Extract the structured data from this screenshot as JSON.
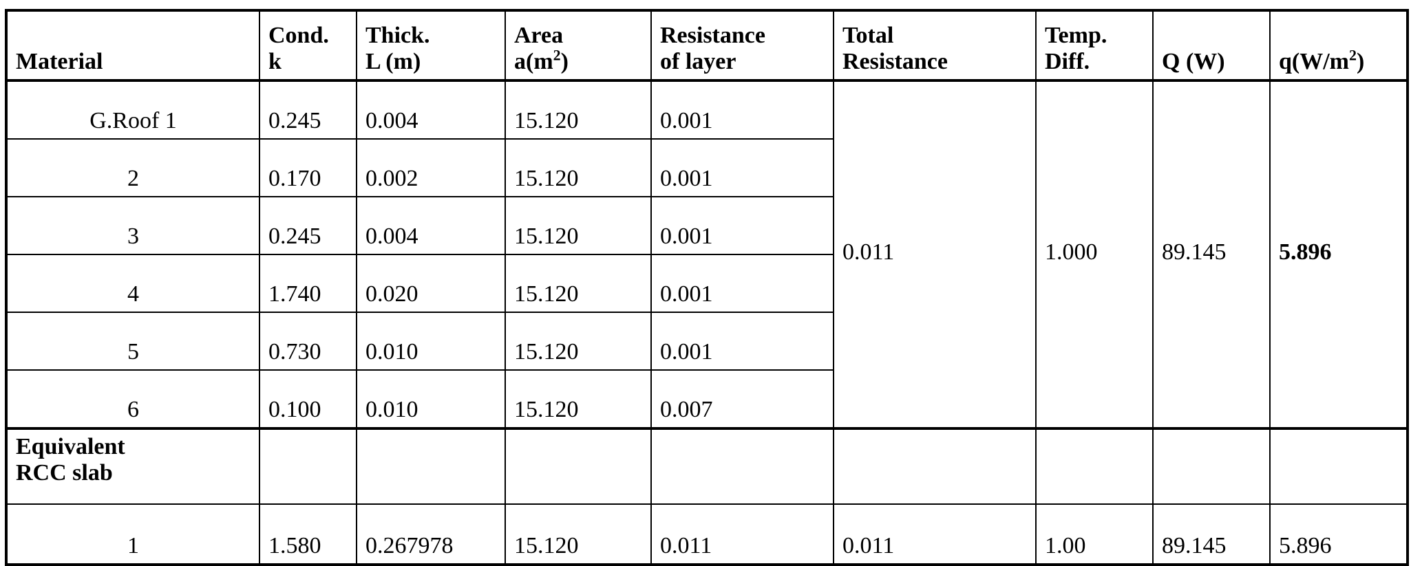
{
  "headers": {
    "material": "Material",
    "cond_1": "Cond.",
    "cond_2": "k",
    "thick_1": "Thick.",
    "thick_2": "L (m)",
    "area_1": "Area",
    "area_2": "a(m",
    "area_sup": "2",
    "area_3": ")",
    "res_1": "Resistance",
    "res_2": "of layer",
    "total_1": "Total",
    "total_2": "Resistance",
    "temp_1": "Temp.",
    "temp_2": "Diff.",
    "Q": "Q (W)",
    "q_1": "q(W/m",
    "q_sup": "2",
    "q_3": ")"
  },
  "layers": [
    {
      "material": "G.Roof 1",
      "k": "0.245",
      "L": "0.004",
      "a": "15.120",
      "r": "0.001"
    },
    {
      "material": "2",
      "k": "0.170",
      "L": "0.002",
      "a": "15.120",
      "r": "0.001"
    },
    {
      "material": "3",
      "k": "0.245",
      "L": "0.004",
      "a": "15.120",
      "r": "0.001"
    },
    {
      "material": "4",
      "k": "1.740",
      "L": "0.020",
      "a": "15.120",
      "r": "0.001"
    },
    {
      "material": "5",
      "k": "0.730",
      "L": "0.010",
      "a": "15.120",
      "r": "0.001"
    },
    {
      "material": "6",
      "k": "0.100",
      "L": "0.010",
      "a": "15.120",
      "r": "0.007"
    }
  ],
  "group": {
    "total_resistance": "0.011",
    "temp_diff": "1.000",
    "Q": "89.145",
    "q": "5.896"
  },
  "equivalent": {
    "label_1": "Equivalent",
    "label_2": "RCC slab"
  },
  "equivalent_row": {
    "material": "1",
    "k": "1.580",
    "L": "0.267978",
    "a": "15.120",
    "r": "0.011",
    "total_resistance": "0.011",
    "temp_diff": "1.00",
    "Q": "89.145",
    "q": "5.896"
  }
}
